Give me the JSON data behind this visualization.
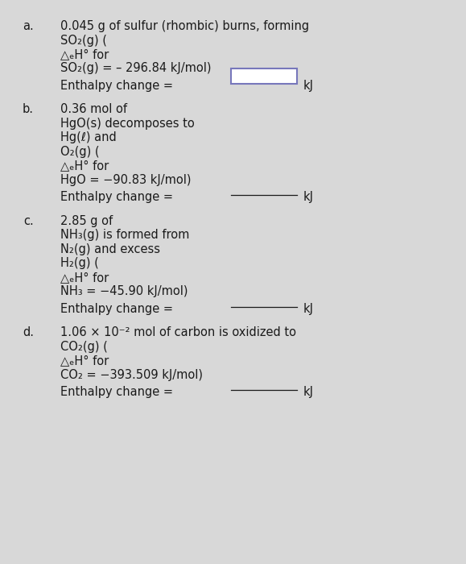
{
  "bg_color": "#d8d8d8",
  "text_color": "#1a1a1a",
  "font_size": 10.5,
  "label_fontsize": 10.5,
  "sections": [
    {
      "label": "a.",
      "lines": [
        "0.045 g of sulfur (rhombic) burns, forming",
        "SO₂(g) (",
        "△ₑH° for",
        "SO₂(g) = – 296.84 kJ/mol)"
      ],
      "enthalpy_line": "Enthalpy change =",
      "has_box": true,
      "box_color": "#7777bb"
    },
    {
      "label": "b.",
      "lines": [
        "0.36 mol of",
        "HgO(s) decomposes to",
        "Hg(ℓ) and",
        "O₂(g) (",
        "△ₑH° for",
        "HgO = −90.83 kJ/mol)"
      ],
      "enthalpy_line": "Enthalpy change =",
      "has_box": false,
      "box_color": null
    },
    {
      "label": "c.",
      "lines": [
        "2.85 g of",
        "NH₃(g) is formed from",
        "N₂(g) and excess",
        "H₂(g) (",
        "△ₑH° for",
        "NH₃ = −45.90 kJ/mol)"
      ],
      "enthalpy_line": "Enthalpy change =",
      "has_box": false,
      "box_color": null
    },
    {
      "label": "d.",
      "lines": [
        "1.06 × 10⁻² mol of carbon is oxidized to",
        "CO₂(g) (",
        "△ₑH° for",
        "CO₂ = −393.509 kJ/mol)"
      ],
      "enthalpy_line": "Enthalpy change =",
      "has_box": false,
      "box_color": null
    }
  ],
  "fig_width": 5.79,
  "fig_height": 7.0,
  "dpi": 100
}
